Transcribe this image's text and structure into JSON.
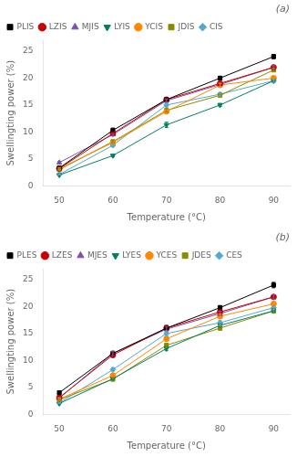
{
  "chart_data": [
    {
      "type": "line",
      "annotation": "(a)",
      "xlabel": "Temperature (°C)",
      "ylabel": "Swellingting power (%)",
      "x": [
        50,
        60,
        70,
        80,
        90
      ],
      "xlim": [
        47,
        93
      ],
      "xticks": [
        50,
        60,
        70,
        80,
        90
      ],
      "ylim": [
        0,
        27
      ],
      "yticks": [
        0,
        5,
        10,
        15,
        20,
        25
      ],
      "grid": false,
      "legend": "upper left",
      "series": [
        {
          "name": "PLIS",
          "color": "#000000",
          "marker": "square",
          "values": [
            3.3,
            10.3,
            16.0,
            20.0,
            24.0
          ],
          "errors": [
            0.2,
            0.4,
            0.3,
            0.3,
            0.4
          ]
        },
        {
          "name": "LZIS",
          "color": "#cc0000",
          "marker": "circle",
          "values": [
            3.2,
            9.7,
            16.0,
            19.0,
            22.0
          ],
          "errors": [
            0.2,
            0.3,
            0.3,
            0.3,
            0.3
          ]
        },
        {
          "name": "MJIS",
          "color": "#7b52ab",
          "marker": "triangle-up",
          "values": [
            4.3,
            9.5,
            15.8,
            18.8,
            22.0
          ],
          "errors": [
            0.2,
            0.2,
            0.3,
            0.3,
            0.3
          ]
        },
        {
          "name": "LYIS",
          "color": "#008060",
          "marker": "triangle-down",
          "values": [
            2.0,
            5.6,
            11.3,
            15.0,
            19.5
          ],
          "errors": [
            0.1,
            0.2,
            0.5,
            0.3,
            0.3
          ]
        },
        {
          "name": "YCIS",
          "color": "#ff8800",
          "marker": "circle",
          "values": [
            3.2,
            8.0,
            13.8,
            18.7,
            20.0
          ],
          "errors": [
            0.2,
            0.2,
            0.3,
            0.3,
            0.3
          ]
        },
        {
          "name": "JDIS",
          "color": "#8b8b00",
          "marker": "square",
          "values": [
            3.0,
            8.2,
            14.0,
            16.8,
            21.5
          ],
          "errors": [
            0.2,
            0.2,
            0.3,
            0.3,
            0.3
          ]
        },
        {
          "name": "CIS",
          "color": "#55aacc",
          "marker": "diamond",
          "values": [
            2.1,
            7.5,
            15.0,
            17.0,
            19.5
          ],
          "errors": [
            0.1,
            0.2,
            0.4,
            0.3,
            0.3
          ]
        }
      ]
    },
    {
      "type": "line",
      "annotation": "(b)",
      "xlabel": "Temperature (°C)",
      "ylabel": "Swellingting power (%)",
      "x": [
        50,
        60,
        70,
        80,
        90
      ],
      "xlim": [
        47,
        93
      ],
      "xticks": [
        50,
        60,
        70,
        80,
        90
      ],
      "ylim": [
        0,
        27
      ],
      "yticks": [
        0,
        5,
        10,
        15,
        20,
        25
      ],
      "grid": false,
      "legend": "upper left",
      "series": [
        {
          "name": "PLES",
          "color": "#000000",
          "marker": "square",
          "values": [
            4.0,
            11.3,
            16.0,
            19.8,
            24.0
          ],
          "errors": [
            0.3,
            0.4,
            0.5,
            0.4,
            0.5
          ]
        },
        {
          "name": "LZES",
          "color": "#cc0000",
          "marker": "circle",
          "values": [
            3.1,
            11.0,
            16.0,
            19.0,
            21.8
          ],
          "errors": [
            0.2,
            0.4,
            0.4,
            0.4,
            0.4
          ]
        },
        {
          "name": "MJES",
          "color": "#7b52ab",
          "marker": "triangle-up",
          "values": [
            3.0,
            11.3,
            15.8,
            18.7,
            21.8
          ],
          "errors": [
            0.2,
            0.4,
            0.4,
            0.4,
            0.4
          ]
        },
        {
          "name": "LYES",
          "color": "#008060",
          "marker": "triangle-down",
          "values": [
            2.0,
            6.6,
            12.2,
            16.5,
            19.2
          ],
          "errors": [
            0.1,
            0.3,
            0.4,
            0.3,
            0.4
          ]
        },
        {
          "name": "YCES",
          "color": "#ff8800",
          "marker": "circle",
          "values": [
            2.8,
            7.2,
            14.0,
            18.2,
            20.5
          ],
          "errors": [
            0.2,
            0.3,
            0.4,
            0.4,
            0.4
          ]
        },
        {
          "name": "JDES",
          "color": "#8b8b00",
          "marker": "square",
          "values": [
            2.7,
            6.5,
            12.8,
            16.0,
            19.2
          ],
          "errors": [
            0.2,
            0.3,
            0.4,
            0.4,
            0.4
          ]
        },
        {
          "name": "CES",
          "color": "#55aacc",
          "marker": "diamond",
          "values": [
            2.1,
            8.3,
            15.0,
            17.0,
            19.8
          ],
          "errors": [
            0.1,
            0.3,
            0.5,
            0.4,
            0.4
          ]
        }
      ]
    }
  ]
}
